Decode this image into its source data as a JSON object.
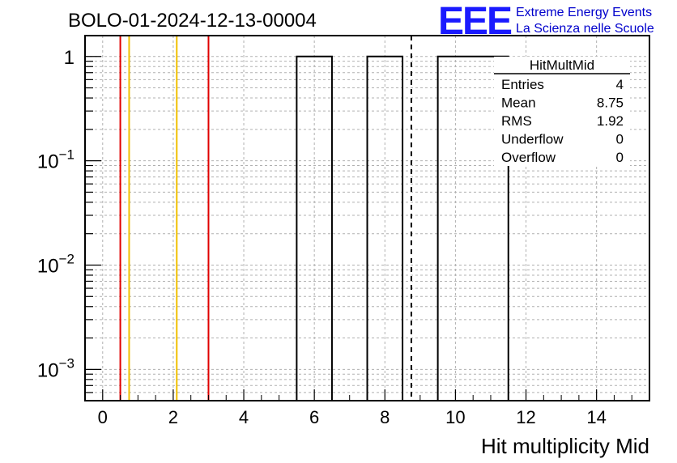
{
  "header": {
    "run_title": "BOLO-01-2024-12-13-00004",
    "logo_text": "EEE",
    "org_line1": "Extreme Energy Events",
    "org_line2": "La Scienza nelle Scuole"
  },
  "colors": {
    "logo": "#1a1aff",
    "org_text": "#0000cc",
    "red_line": "#e00000",
    "yellow_line": "#f0c000",
    "histogram": "#000000",
    "grid": "#b0b0b0"
  },
  "stats_box": {
    "title": "HitMultMid",
    "rows": [
      {
        "label": "Entries",
        "value": "4"
      },
      {
        "label": "Mean",
        "value": "8.75"
      },
      {
        "label": "RMS",
        "value": "1.92"
      },
      {
        "label": "Underflow",
        "value": "0"
      },
      {
        "label": "Overflow",
        "value": "0"
      }
    ]
  },
  "chart_data": {
    "type": "bar",
    "title": "BOLO-01-2024-12-13-00004",
    "xlabel": "Hit multiplicity Mid",
    "ylabel": "",
    "xlim": [
      -0.5,
      15.5
    ],
    "ylim_log10": [
      -3.3,
      0.2
    ],
    "log_y": true,
    "grid": true,
    "x_ticks": [
      "0",
      "2",
      "4",
      "6",
      "8",
      "10",
      "12",
      "14"
    ],
    "x_tick_values": [
      0,
      2,
      4,
      6,
      8,
      10,
      12,
      14
    ],
    "y_ticks": [
      {
        "base": "10",
        "exp": "−3",
        "value": 0.001
      },
      {
        "base": "10",
        "exp": "−2",
        "value": 0.01
      },
      {
        "base": "10",
        "exp": "−1",
        "value": 0.1
      },
      {
        "base": "1",
        "exp": "",
        "value": 1
      }
    ],
    "bins": [
      {
        "x_low": 5.5,
        "x_high": 6.5,
        "value": 1
      },
      {
        "x_low": 7.5,
        "x_high": 8.5,
        "value": 1
      },
      {
        "x_low": 9.5,
        "x_high": 10.5,
        "value": 1
      },
      {
        "x_low": 10.5,
        "x_high": 11.5,
        "value": 1
      }
    ],
    "markers": [
      {
        "x": 0.5,
        "color": "red",
        "style": "solid"
      },
      {
        "x": 0.75,
        "color": "yellow",
        "style": "solid"
      },
      {
        "x": 2.1,
        "color": "yellow",
        "style": "solid"
      },
      {
        "x": 3.0,
        "color": "red",
        "style": "solid"
      },
      {
        "x": 8.75,
        "color": "black",
        "style": "dashed"
      }
    ]
  }
}
